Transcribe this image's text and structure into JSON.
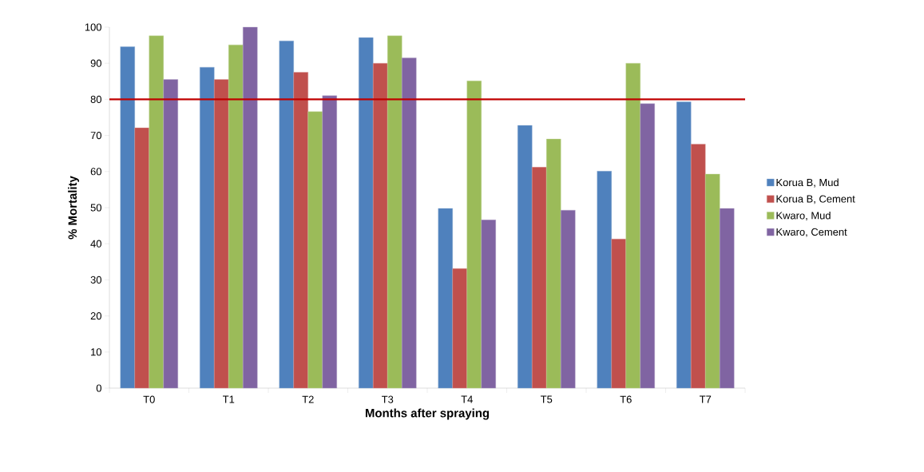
{
  "chart_data": {
    "type": "bar",
    "xlabel": "Months after spraying",
    "ylabel": "% Mortality",
    "categories": [
      "T0",
      "T1",
      "T2",
      "T3",
      "T4",
      "T5",
      "T6",
      "T7"
    ],
    "series": [
      {
        "name": "Korua B, Mud",
        "color": "#4f81bd",
        "values": [
          94.6,
          88.9,
          96.2,
          97.1,
          49.8,
          72.8,
          60.1,
          79.3
        ]
      },
      {
        "name": "Korua B, Cement",
        "color": "#c0504d",
        "values": [
          72.1,
          85.5,
          87.5,
          90.0,
          33.1,
          61.2,
          41.3,
          67.6
        ]
      },
      {
        "name": "Kwaro, Mud",
        "color": "#9bbb59",
        "values": [
          97.6,
          95.1,
          76.6,
          97.6,
          85.1,
          69.0,
          90.0,
          59.3
        ]
      },
      {
        "name": "Kwaro, Cement",
        "color": "#8064a2",
        "values": [
          85.5,
          100,
          81.0,
          91.5,
          46.6,
          49.3,
          78.8,
          49.8
        ]
      }
    ],
    "ylim": [
      0,
      100
    ],
    "yticks": [
      0,
      10,
      20,
      30,
      40,
      50,
      60,
      70,
      80,
      90,
      100
    ],
    "ref_lines": [
      {
        "axis": "y",
        "value": 80,
        "color": "#c00000"
      }
    ],
    "grid": false,
    "legend": "right"
  }
}
